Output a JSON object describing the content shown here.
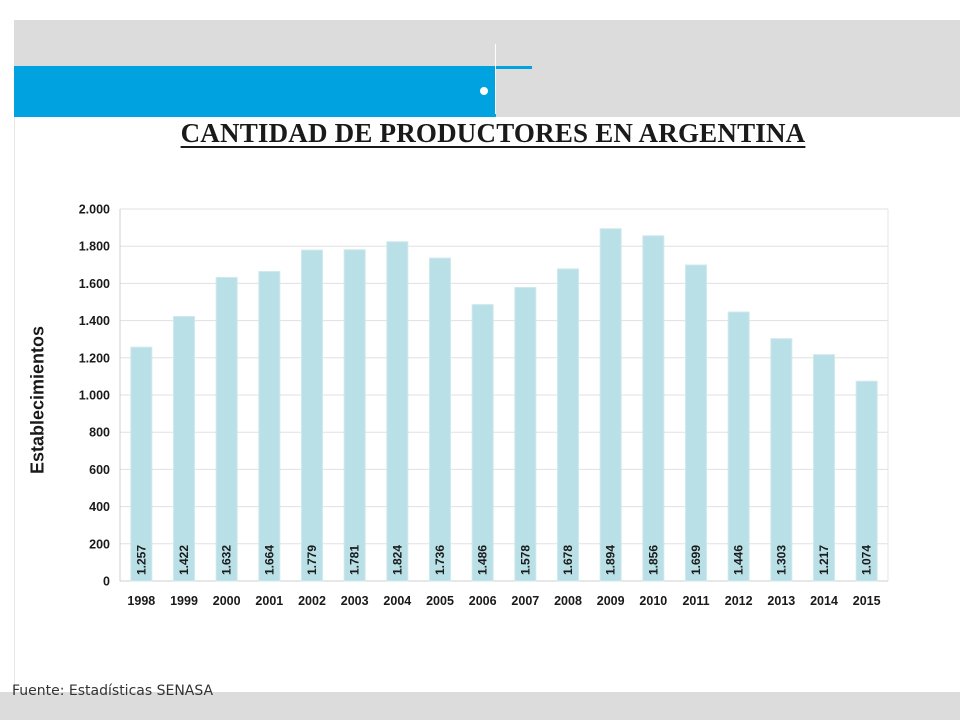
{
  "slide": {
    "title": "CANTIDAD DE PRODUCTORES EN ARGENTINA",
    "source": "Fuente: Estadísticas SENASA",
    "colors": {
      "accent_blue": "#00a3e0",
      "band_grey": "#dcdcdc",
      "bar_fill": "#b9e0e6",
      "bar_stroke": "#cfe9ed",
      "grid": "#e0e0e0"
    }
  },
  "chart_data": {
    "type": "bar",
    "title": "",
    "xlabel": "",
    "ylabel": "Establecimientos",
    "ylim": [
      0,
      2000
    ],
    "yticks": [
      0,
      200,
      400,
      600,
      800,
      1000,
      1200,
      1400,
      1600,
      1800,
      2000
    ],
    "ytick_labels": [
      "0",
      "200",
      "400",
      "600",
      "800",
      "1.000",
      "1.200",
      "1.400",
      "1.600",
      "1.800",
      "2.000"
    ],
    "grid": true,
    "categories": [
      "1998",
      "1999",
      "2000",
      "2001",
      "2002",
      "2003",
      "2004",
      "2005",
      "2006",
      "2007",
      "2008",
      "2009",
      "2010",
      "2011",
      "2012",
      "2013",
      "2014",
      "2015"
    ],
    "values": [
      1257,
      1422,
      1632,
      1664,
      1779,
      1781,
      1824,
      1736,
      1486,
      1578,
      1678,
      1894,
      1856,
      1699,
      1446,
      1303,
      1217,
      1074
    ],
    "data_labels": [
      "1.257",
      "1.422",
      "1.632",
      "1.664",
      "1.779",
      "1.781",
      "1.824",
      "1.736",
      "1.486",
      "1.578",
      "1.678",
      "1.894",
      "1.856",
      "1.699",
      "1.446",
      "1.303",
      "1.217",
      "1.074"
    ]
  }
}
